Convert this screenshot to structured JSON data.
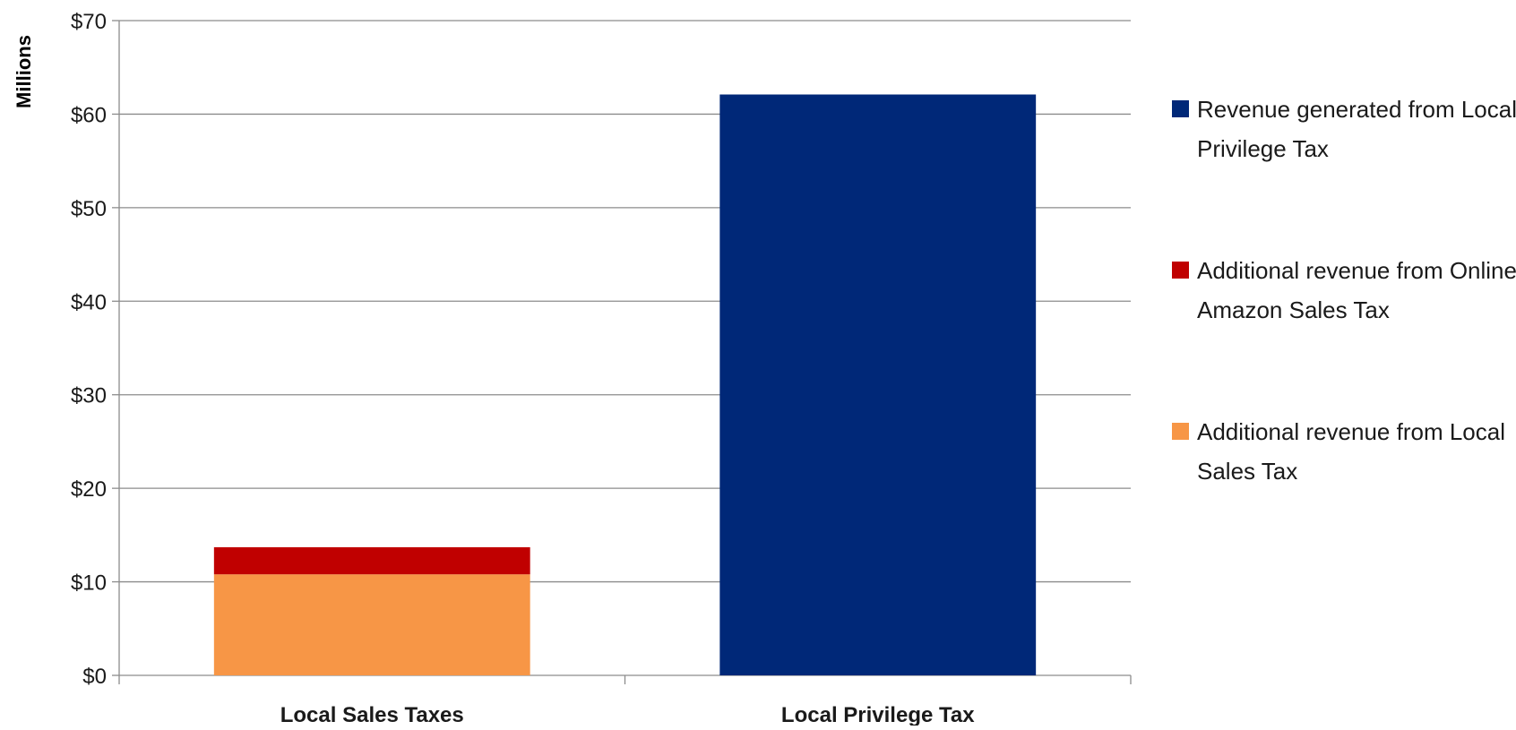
{
  "chart_data": {
    "type": "bar",
    "stacked": true,
    "categories": [
      "Local Sales Taxes",
      "Local Privilege Tax"
    ],
    "series": [
      {
        "name": "Additional revenue from Local Sales Tax",
        "values": [
          10.8,
          0
        ],
        "color": "#F79646"
      },
      {
        "name": "Additional revenue from Online Amazon Sales Tax",
        "values": [
          2.9,
          0
        ],
        "color": "#C00000"
      },
      {
        "name": "Revenue generated from Local Privilege Tax",
        "values": [
          0,
          62.1
        ],
        "color": "#002878"
      }
    ],
    "legend_order": [
      2,
      1,
      0
    ],
    "legend_position": "right",
    "ylabel": "Millions",
    "ylim": [
      0,
      70
    ],
    "yticks": [
      0,
      10,
      20,
      30,
      40,
      50,
      60,
      70
    ],
    "ytick_labels": [
      "$0",
      "$10",
      "$20",
      "$30",
      "$40",
      "$50",
      "$60",
      "$70"
    ],
    "grid": true
  }
}
